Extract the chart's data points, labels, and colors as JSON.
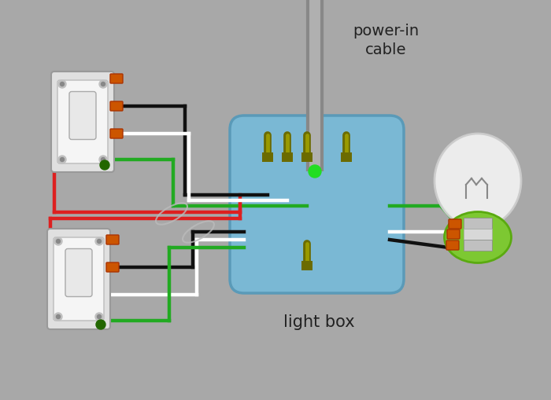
{
  "background_color": "#a8a8a8",
  "label_power_in": "power-in\ncable",
  "label_light_box": "light box",
  "light_box_color": "#7ab8d4",
  "light_box_edge": "#5a9ab8",
  "bulb_green_color": "#7dc832",
  "bulb_green_edge": "#5aaa10",
  "wire_red": "#dd2020",
  "wire_black": "#111111",
  "wire_white": "#ffffff",
  "wire_green": "#22aa22",
  "terminal_dark": "#6b6b00",
  "terminal_light": "#9a9a00",
  "connector_color": "#cc5500",
  "cable_color": "#888888",
  "cable_light": "#b0b0b0",
  "switch_outer": "#e0e0e0",
  "switch_inner": "#f5f5f5",
  "switch_border": "#999999",
  "screw_outer": "#c0c0c0",
  "screw_inner": "#888888"
}
